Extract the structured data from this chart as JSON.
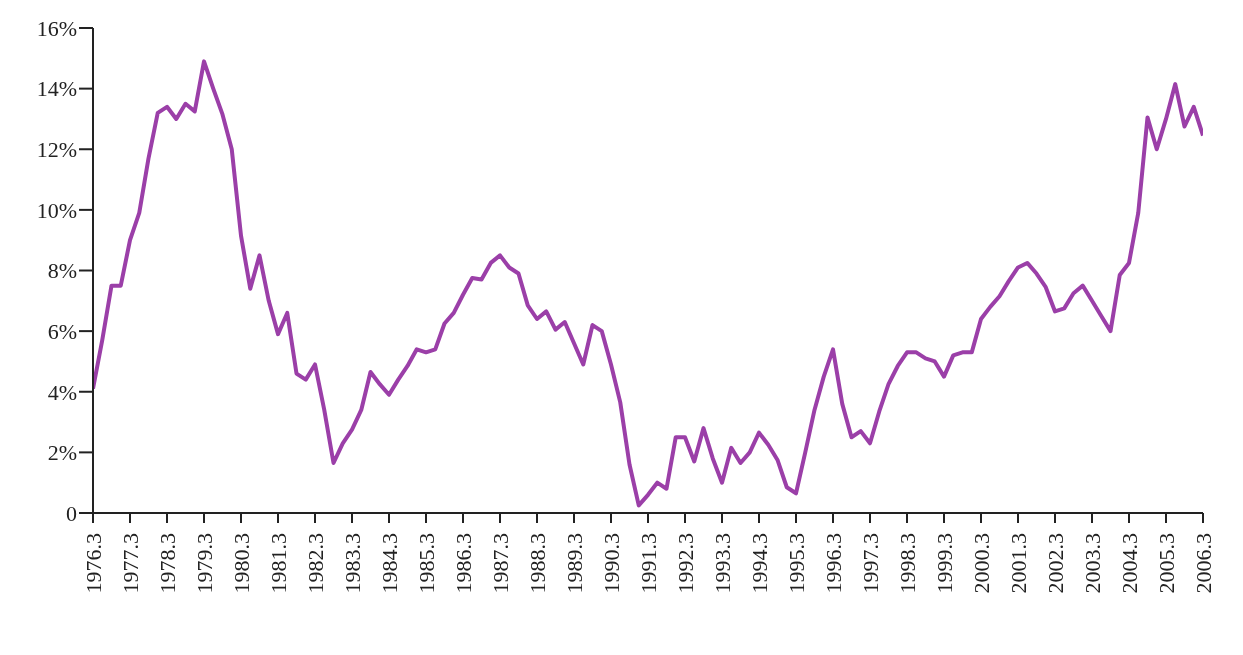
{
  "chart_data": {
    "type": "line",
    "categories": [
      "1976.3",
      null,
      null,
      null,
      "1977.3",
      null,
      null,
      null,
      "1978.3",
      null,
      null,
      null,
      "1979.3",
      null,
      null,
      null,
      "1980.3",
      null,
      null,
      null,
      "1981.3",
      null,
      null,
      null,
      "1982.3",
      null,
      null,
      null,
      "1983.3",
      null,
      null,
      null,
      "1984.3",
      null,
      null,
      null,
      "1985.3",
      null,
      null,
      null,
      "1986.3",
      null,
      null,
      null,
      "1987.3",
      null,
      null,
      null,
      "1988.3",
      null,
      null,
      null,
      "1989.3",
      null,
      null,
      null,
      "1990.3",
      null,
      null,
      null,
      "1991.3",
      null,
      null,
      null,
      "1992.3",
      null,
      null,
      null,
      "1993.3",
      null,
      null,
      null,
      "1994.3",
      null,
      null,
      null,
      "1995.3",
      null,
      null,
      null,
      "1996.3",
      null,
      null,
      null,
      "1997.3",
      null,
      null,
      null,
      "1998.3",
      null,
      null,
      null,
      "1999.3",
      null,
      null,
      null,
      "2000.3",
      null,
      null,
      null,
      "2001.3",
      null,
      null,
      null,
      "2002.3",
      null,
      null,
      null,
      "2003.3",
      null,
      null,
      null,
      "2004.3",
      null,
      null,
      null,
      "2005.3",
      null,
      null,
      null,
      "2006.3"
    ],
    "series": [
      {
        "color": "#9b3fa8",
        "values": [
          4.1,
          5.7,
          7.5,
          7.5,
          9.0,
          9.9,
          11.7,
          13.2,
          13.4,
          13.0,
          13.5,
          13.25,
          14.9,
          14.0,
          13.15,
          12.0,
          9.15,
          7.4,
          8.5,
          7.0,
          5.9,
          6.6,
          4.6,
          4.4,
          4.9,
          3.4,
          1.65,
          2.3,
          2.75,
          3.4,
          4.65,
          4.25,
          3.9,
          4.4,
          4.85,
          5.4,
          5.3,
          5.4,
          6.25,
          6.6,
          7.2,
          7.75,
          7.7,
          8.25,
          8.5,
          8.1,
          7.9,
          6.85,
          6.4,
          6.65,
          6.05,
          6.3,
          5.6,
          4.9,
          6.2,
          6.0,
          4.9,
          3.65,
          1.6,
          0.25,
          0.6,
          1.0,
          0.8,
          2.5,
          2.5,
          1.7,
          2.8,
          1.8,
          1.0,
          2.15,
          1.65,
          2.0,
          2.65,
          2.25,
          1.75,
          0.85,
          0.65,
          2.0,
          3.4,
          4.5,
          5.4,
          3.6,
          2.5,
          2.7,
          2.3,
          3.35,
          4.25,
          4.85,
          5.3,
          5.3,
          5.1,
          5.0,
          4.5,
          5.2,
          5.3,
          5.3,
          6.4,
          6.8,
          7.15,
          7.65,
          8.1,
          8.25,
          7.9,
          7.45,
          6.65,
          6.75,
          7.25,
          7.5,
          7.0,
          6.5,
          6.0,
          7.85,
          8.25,
          9.9,
          13.05,
          12.0,
          13.0,
          14.15,
          12.75,
          13.4,
          12.45
        ]
      }
    ],
    "ylim": [
      0,
      16
    ],
    "yticks": [
      0,
      {
        "value": 2,
        "label": "2%"
      },
      {
        "value": 4,
        "label": "4%"
      },
      {
        "value": 6,
        "label": "6%"
      },
      {
        "value": 8,
        "label": "8%"
      },
      {
        "value": 10,
        "label": "10%"
      },
      {
        "value": 12,
        "label": "12%"
      },
      {
        "value": 14,
        "label": "14%"
      },
      {
        "value": 16,
        "label": "16%"
      }
    ],
    "grid": false,
    "legend": false,
    "marker": "none",
    "line_style": "solid"
  }
}
